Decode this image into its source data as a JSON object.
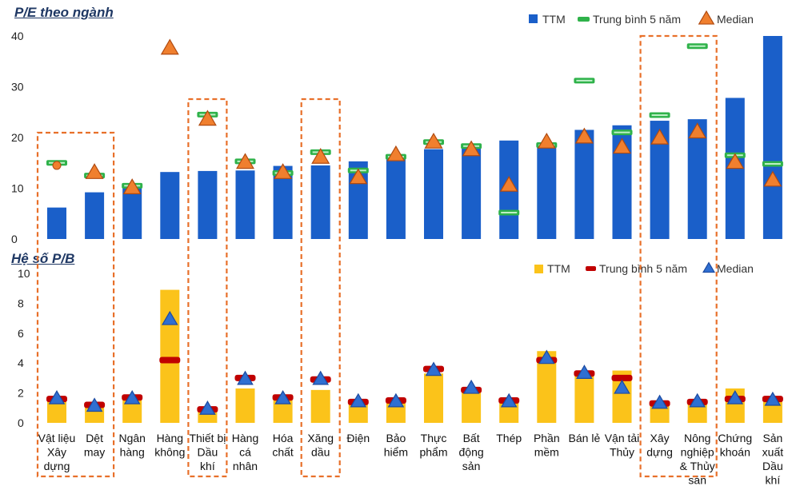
{
  "colors": {
    "pe_ttm": "#1a5fc9",
    "pe_avg5": "#2fb24a",
    "pe_median": "#f07f2e",
    "pb_ttm": "#fbc31a",
    "pb_avg5": "#c00000",
    "pb_median": "#2f6fd1",
    "highlight_box": "#e8702a"
  },
  "chart_data": [
    {
      "type": "bar",
      "title": "P/E theo ngành",
      "ylim": [
        0,
        40
      ],
      "yticks": [
        0,
        10,
        20,
        30,
        40
      ],
      "legend": [
        "TTM",
        "Trung bình 5 năm",
        "Median"
      ],
      "legend_position": "top-right",
      "categories": [
        "Vật liệu Xây dựng",
        "Dệt may",
        "Ngân hàng",
        "Hàng không",
        "Thiết bị Dầu khí",
        "Hàng cá nhân",
        "Hóa chất",
        "Xăng dầu",
        "Điện",
        "Bảo hiểm",
        "Thực phẩm",
        "Bất động sản",
        "Thép",
        "Phần mềm",
        "Bán lẻ",
        "Vận tải Thủy",
        "Xây dựng",
        "Nông nghiệp & Thủy sản",
        "Chứng khoán",
        "Sản xuất Dầu khí"
      ],
      "series": [
        {
          "name": "TTM",
          "values": [
            6.2,
            9.2,
            11.0,
            13.2,
            13.4,
            13.5,
            14.4,
            14.5,
            15.3,
            16.0,
            17.7,
            18.3,
            19.4,
            18.8,
            21.5,
            22.4,
            23.3,
            23.6,
            27.8,
            40.0
          ]
        },
        {
          "name": "Trung bình 5 năm",
          "values": [
            15.0,
            12.5,
            10.5,
            null,
            24.5,
            15.3,
            13.0,
            17.1,
            13.5,
            16.2,
            19.1,
            18.3,
            5.2,
            18.5,
            31.2,
            21.0,
            24.4,
            38.0,
            16.5,
            14.8
          ]
        },
        {
          "name": "Median",
          "values": [
            14.5,
            13.0,
            10.0,
            37.5,
            23.5,
            15.0,
            13.0,
            16.0,
            12.0,
            16.5,
            19.0,
            17.5,
            10.5,
            19.0,
            20.0,
            18.0,
            19.8,
            21.0,
            15.0,
            11.5
          ]
        }
      ]
    },
    {
      "type": "bar",
      "title": "Hệ số P/B",
      "ylim": [
        0,
        10
      ],
      "yticks": [
        0,
        2,
        4,
        6,
        8,
        10
      ],
      "legend": [
        "TTM",
        "Trung bình 5 năm",
        "Median"
      ],
      "legend_position": "top-right",
      "categories": [
        "Vật liệu Xây dựng",
        "Dệt may",
        "Ngân hàng",
        "Hàng không",
        "Thiết bị Dầu khí",
        "Hàng cá nhân",
        "Hóa chất",
        "Xăng dầu",
        "Điện",
        "Bảo hiểm",
        "Thực phẩm",
        "Bất động sản",
        "Thép",
        "Phần mềm",
        "Bán lẻ",
        "Vận tải Thủy",
        "Xây dựng",
        "Nông nghiệp & Thủy sản",
        "Chứng khoán",
        "Sản xuất Dầu khí"
      ],
      "series": [
        {
          "name": "TTM",
          "values": [
            1.5,
            1.1,
            1.7,
            8.9,
            0.9,
            2.3,
            1.9,
            2.2,
            1.4,
            1.4,
            3.3,
            2.2,
            1.5,
            4.8,
            3.3,
            3.5,
            1.4,
            1.4,
            2.3,
            1.6
          ]
        },
        {
          "name": "Trung bình 5 năm",
          "values": [
            1.6,
            1.2,
            1.7,
            4.2,
            0.9,
            3.0,
            1.7,
            2.9,
            1.4,
            1.5,
            3.6,
            2.2,
            1.5,
            4.2,
            3.3,
            3.0,
            1.3,
            1.4,
            1.6,
            1.6
          ]
        },
        {
          "name": "Median",
          "values": [
            1.6,
            1.1,
            1.6,
            6.9,
            0.9,
            2.9,
            1.6,
            2.9,
            1.4,
            1.4,
            3.5,
            2.3,
            1.4,
            4.3,
            3.3,
            2.3,
            1.3,
            1.4,
            1.6,
            1.5
          ]
        }
      ]
    }
  ],
  "category_label_lines": [
    [
      "Vật liệu",
      "Xây",
      "dựng"
    ],
    [
      "Dệt",
      "may"
    ],
    [
      "Ngân",
      "hàng"
    ],
    [
      "Hàng",
      "không"
    ],
    [
      "Thiết bị",
      "Dầu",
      "khí"
    ],
    [
      "Hàng",
      "cá",
      "nhân"
    ],
    [
      "Hóa",
      "chất"
    ],
    [
      "Xăng",
      "dầu"
    ],
    [
      "Điện"
    ],
    [
      "Bảo",
      "hiểm"
    ],
    [
      "Thực",
      "phẩm"
    ],
    [
      "Bất",
      "động",
      "sản"
    ],
    [
      "Thép"
    ],
    [
      "Phần",
      "mềm"
    ],
    [
      "Bán lẻ"
    ],
    [
      "Vận tải",
      "Thủy"
    ],
    [
      "Xây",
      "dựng"
    ],
    [
      "Nông",
      "nghiệp",
      "& Thủy",
      "sản"
    ],
    [
      "Chứng",
      "khoán"
    ],
    [
      "Sản",
      "xuất",
      "Dầu",
      "khí"
    ]
  ],
  "highlighted_categories": [
    [
      "Vật liệu Xây dựng",
      "Dệt may"
    ],
    [
      "Thiết bị Dầu khí"
    ],
    [
      "Xăng dầu"
    ],
    [
      "Xây dựng",
      "Nông nghiệp & Thủy sản"
    ]
  ]
}
